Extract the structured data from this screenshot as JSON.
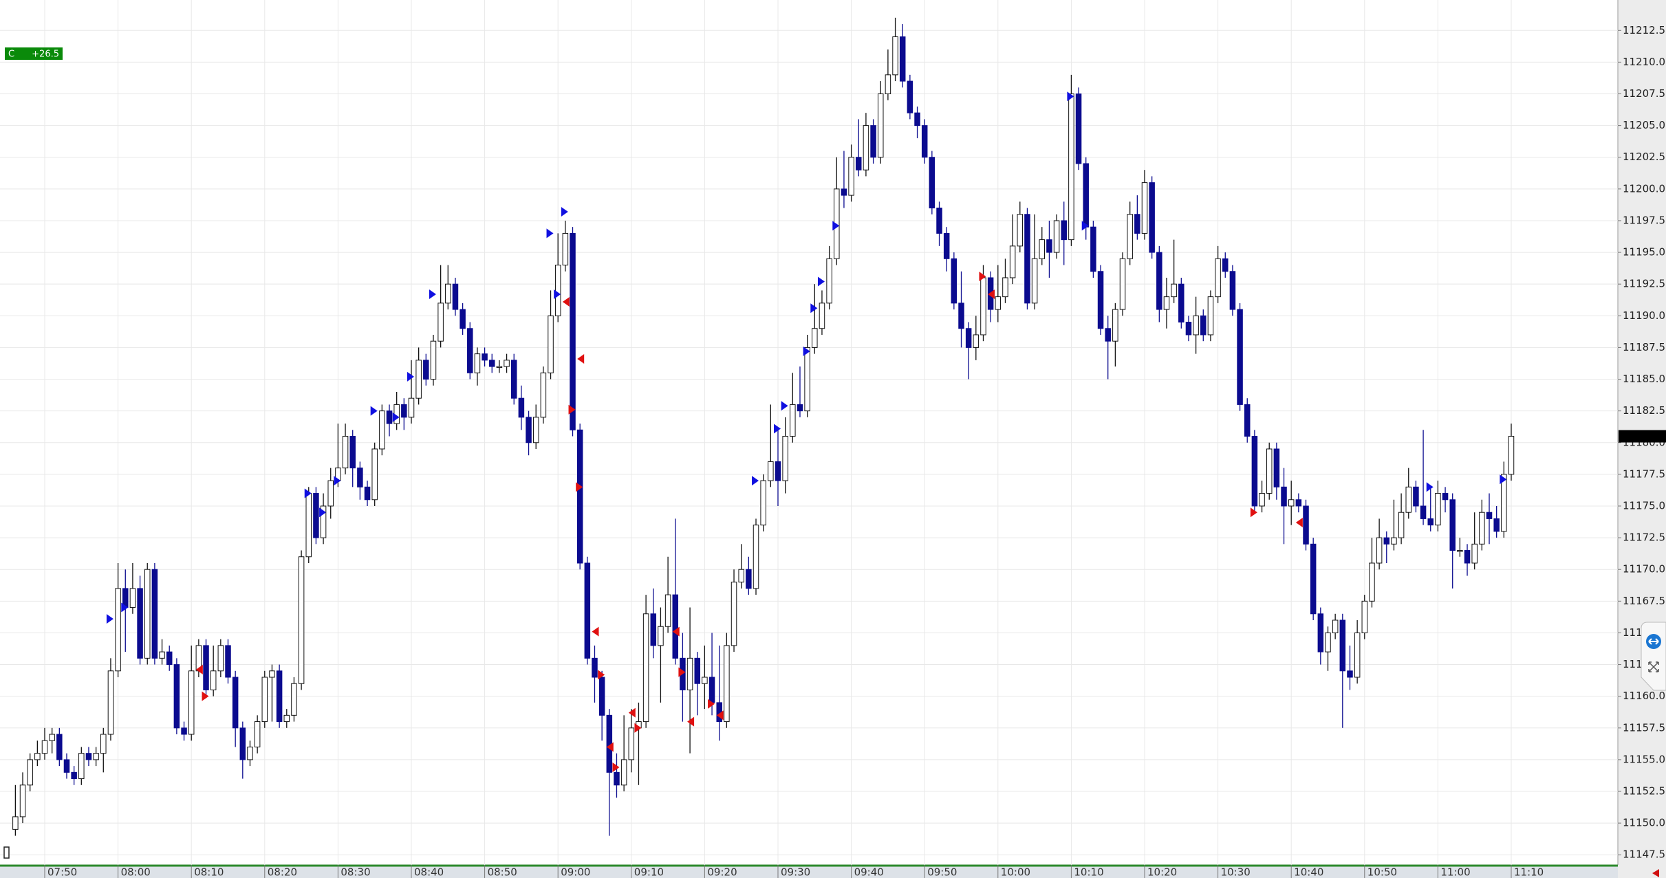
{
  "chart_data": {
    "type": "candlestick",
    "badge": {
      "label": "C",
      "text": "+26.5"
    },
    "up_color": "#ffffff",
    "down_color": "#0b0b8f",
    "outline_color": "#111111",
    "grid": true,
    "categories": [
      null,
      null,
      null,
      null,
      "07:50",
      null,
      null,
      null,
      null,
      null,
      null,
      null,
      null,
      null,
      "08:00",
      null,
      null,
      null,
      null,
      null,
      null,
      null,
      null,
      null,
      "08:10",
      null,
      null,
      null,
      null,
      null,
      null,
      null,
      null,
      null,
      "08:20",
      null,
      null,
      null,
      null,
      null,
      null,
      null,
      null,
      null,
      "08:30",
      null,
      null,
      null,
      null,
      null,
      null,
      null,
      null,
      null,
      "08:40",
      null,
      null,
      null,
      null,
      null,
      null,
      null,
      null,
      null,
      "08:50",
      null,
      null,
      null,
      null,
      null,
      null,
      null,
      null,
      null,
      "09:00",
      null,
      null,
      null,
      null,
      null,
      null,
      null,
      null,
      null,
      "09:10",
      null,
      null,
      null,
      null,
      null,
      null,
      null,
      null,
      null,
      "09:20",
      null,
      null,
      null,
      null,
      null,
      null,
      null,
      null,
      null,
      "09:30",
      null,
      null,
      null,
      null,
      null,
      null,
      null,
      null,
      null,
      "09:40",
      null,
      null,
      null,
      null,
      null,
      null,
      null,
      null,
      null,
      "09:50",
      null,
      null,
      null,
      null,
      null,
      null,
      null,
      null,
      null,
      "10:00",
      null,
      null,
      null,
      null,
      null,
      null,
      null,
      null,
      null,
      "10:10",
      null,
      null,
      null,
      null,
      null,
      null,
      null,
      null,
      null,
      "10:20",
      null,
      null,
      null,
      null,
      null,
      null,
      null,
      null,
      null,
      "10:30",
      null,
      null,
      null,
      null,
      null,
      null,
      null,
      null,
      null,
      "10:40",
      null,
      null,
      null,
      null,
      null,
      null,
      null,
      null,
      null,
      "10:50",
      null,
      null,
      null,
      null,
      null,
      null,
      null,
      null,
      null,
      "11:00",
      null,
      null,
      null,
      null,
      null,
      null,
      null,
      null,
      null,
      "11:10"
    ],
    "open": [
      11149.5,
      11150.5,
      11153,
      11155,
      11155.5,
      11156.5,
      11157,
      11155,
      11154,
      11153.5,
      11155.5,
      11155,
      11155.5,
      11157,
      11162,
      11168.5,
      11167,
      11168.5,
      11163,
      11170,
      11163,
      11163.5,
      11162.5,
      11157.5,
      11157,
      11162,
      11164,
      11160.5,
      11162,
      11164,
      11161.5,
      11157.5,
      11155,
      11156,
      11158,
      11161.5,
      11162,
      11158,
      11158.5,
      11161,
      11171,
      11176,
      11172.5,
      11175,
      11177,
      11178,
      11180.5,
      11178,
      11176.5,
      11175.5,
      11179.5,
      11182.5,
      11181.5,
      11183,
      11182,
      11183.5,
      11186.5,
      11185,
      11188,
      11191,
      11192.5,
      11190.5,
      11189,
      11185.5,
      11187,
      11186.5,
      11186,
      11186,
      11186.5,
      11183.5,
      11182,
      11180,
      11182,
      11185.5,
      11190,
      11194,
      11196.5,
      11181,
      11170.5,
      11163,
      11161.5,
      11158.5,
      11154,
      11153,
      11155,
      11157.5,
      11158,
      11166.5,
      11164,
      11165.5,
      11168,
      11163,
      11160.5,
      11163,
      11161,
      11161.5,
      11159.5,
      11158,
      11164,
      11169,
      11170,
      11168.5,
      11173.5,
      11177,
      11178.5,
      11177,
      11180.5,
      11183,
      11182.5,
      11187.5,
      11189,
      11191,
      11194.5,
      11200,
      11199.5,
      11202.5,
      11201.5,
      11205,
      11202.5,
      11207.5,
      11209,
      11212,
      11208.5,
      11206,
      11205,
      11202.5,
      11198.5,
      11196.5,
      11194.5,
      11191,
      11189,
      11187.5,
      11188.5,
      11193,
      11190.5,
      11191.5,
      11193,
      11195.5,
      11198,
      11191,
      11194.5,
      11196,
      11195,
      11197.5,
      11196,
      11207.5,
      11202,
      11197,
      11193.5,
      11189,
      11188,
      11190.5,
      11194.5,
      11198,
      11196.5,
      11200.5,
      11195,
      11190.5,
      11191.5,
      11192.5,
      11189.5,
      11188.5,
      11190,
      11188.5,
      11191.5,
      11194.5,
      11193.5,
      11190.5,
      11183,
      11180.5,
      11175,
      11176,
      11179.5,
      11176.5,
      11175,
      11175.5,
      11175,
      11172,
      11166.5,
      11163.5,
      11165,
      11166,
      11162,
      11161.5,
      11165,
      11167.5,
      11170.5,
      11172.5,
      11172,
      11172.5,
      11174.5,
      11176.5,
      11175,
      11174,
      11173.5,
      11176,
      11175.5,
      11171.5,
      11171.5,
      11170.5,
      11172,
      11174.5,
      11174,
      11173,
      11177.5
    ],
    "high": [
      11153,
      11154,
      11155.5,
      11156.5,
      11157.5,
      11157.5,
      11157.5,
      11155.5,
      11154.5,
      11156,
      11156,
      11156,
      11157.5,
      11163,
      11170.5,
      11170,
      11170.5,
      11169.5,
      11170.5,
      11170.5,
      11164.5,
      11164,
      11163,
      11158,
      11164,
      11164.5,
      11164.5,
      11164,
      11164.5,
      11164.5,
      11162,
      11158,
      11156.5,
      11158.5,
      11162,
      11162.5,
      11162.5,
      11159,
      11161.5,
      11171.5,
      11176.5,
      11176.5,
      11176,
      11178,
      11181.5,
      11181.5,
      11181,
      11178.5,
      11177,
      11180,
      11183,
      11183,
      11184,
      11183.5,
      11186.5,
      11187.5,
      11187,
      11188.5,
      11194,
      11194,
      11193,
      11191,
      11189.5,
      11187.5,
      11187.5,
      11187,
      11186.5,
      11187,
      11187,
      11184.5,
      11182.5,
      11183,
      11186,
      11192,
      11196.5,
      11197.5,
      11197,
      11181.5,
      11171,
      11164,
      11162,
      11159,
      11155.5,
      11158.5,
      11159,
      11159.5,
      11168,
      11168.5,
      11167,
      11171,
      11174,
      11165,
      11167,
      11163.5,
      11164,
      11165,
      11164,
      11165,
      11170,
      11172,
      11171,
      11174,
      11177.5,
      11183,
      11181,
      11182,
      11185.5,
      11186,
      11188.5,
      11192.5,
      11192,
      11195.5,
      11202.5,
      11203,
      11203.5,
      11205.5,
      11206,
      11205.5,
      11208.5,
      11211,
      11213.5,
      11213,
      11209,
      11206.5,
      11205.5,
      11203,
      11199,
      11197,
      11195,
      11193.5,
      11189.5,
      11190,
      11194,
      11193.5,
      11194,
      11194.5,
      11198,
      11199,
      11198.5,
      11198,
      11197,
      11197.5,
      11198,
      11199,
      11209,
      11208,
      11202.5,
      11197.5,
      11194,
      11190,
      11191,
      11195,
      11199,
      11199.5,
      11201.5,
      11201,
      11195.5,
      11193,
      11196,
      11193,
      11190,
      11191.5,
      11190.5,
      11192,
      11195.5,
      11195,
      11194,
      11191,
      11183.5,
      11181,
      11177,
      11180,
      11180,
      11178,
      11177,
      11176,
      11175.5,
      11172.5,
      11167,
      11165.5,
      11166.5,
      11166.5,
      11164,
      11166,
      11168,
      11172.5,
      11174,
      11173,
      11175.5,
      11176,
      11178,
      11177,
      11181,
      11176.5,
      11177,
      11176.5,
      11176,
      11172.5,
      11172,
      11174.5,
      11175.5,
      11176,
      11175,
      11178.5,
      11181.5
    ],
    "low": [
      11149,
      11150,
      11152.5,
      11154.5,
      11155,
      11155.5,
      11154.5,
      11153.5,
      11153,
      11153,
      11154.5,
      11154.5,
      11154,
      11156.5,
      11161.5,
      11163.5,
      11166.5,
      11162.5,
      11162.5,
      11162.5,
      11162.5,
      11162,
      11157,
      11156.5,
      11156.5,
      11161.5,
      11160,
      11160,
      11161.5,
      11161,
      11156,
      11153.5,
      11154.5,
      11155.5,
      11157.5,
      11158,
      11157.5,
      11157.5,
      11158,
      11160.5,
      11170.5,
      11172,
      11172,
      11174,
      11176.5,
      11177.5,
      11176.5,
      11175.5,
      11175,
      11175,
      11179,
      11180.5,
      11181,
      11181,
      11181.5,
      11183,
      11184.5,
      11184.5,
      11187.5,
      11190.5,
      11190,
      11188.5,
      11185,
      11184.5,
      11186,
      11185.5,
      11185.5,
      11185.5,
      11183,
      11181,
      11179,
      11179.5,
      11181.5,
      11185,
      11189.5,
      11193.5,
      11180.5,
      11170,
      11162.5,
      11159.5,
      11156.5,
      11149,
      11152,
      11152.5,
      11154,
      11153,
      11157.5,
      11163,
      11159.5,
      11165,
      11162.5,
      11158,
      11155.5,
      11158.5,
      11159,
      11158.5,
      11156.5,
      11157.5,
      11163.5,
      11168.5,
      11168,
      11168,
      11173,
      11176.5,
      11175,
      11176,
      11180,
      11182,
      11182,
      11187,
      11188.5,
      11190.5,
      11194,
      11198.5,
      11199,
      11201,
      11201,
      11202,
      11202,
      11207,
      11208.5,
      11208,
      11205.5,
      11204,
      11202,
      11198,
      11195.5,
      11193.5,
      11190.5,
      11187.5,
      11185,
      11186.5,
      11188,
      11189.5,
      11189.5,
      11191,
      11192.5,
      11195,
      11190.5,
      11190.5,
      11194,
      11193,
      11194.5,
      11194,
      11195.5,
      11201.5,
      11196,
      11193,
      11188.5,
      11185,
      11186,
      11190,
      11194,
      11196,
      11196,
      11194.5,
      11189.5,
      11189,
      11191,
      11189,
      11188,
      11187,
      11188,
      11188,
      11191,
      11193,
      11190,
      11182.5,
      11180,
      11174.5,
      11174.5,
      11175.5,
      11175.5,
      11172,
      11173.5,
      11174.5,
      11171.5,
      11166,
      11162.5,
      11162,
      11164.5,
      11157.5,
      11160.5,
      11161,
      11164.5,
      11167,
      11170,
      11170.5,
      11171.5,
      11172,
      11174,
      11174.5,
      11173.5,
      11173,
      11173,
      11174.5,
      11168.5,
      11171,
      11169.5,
      11170,
      11171.5,
      11172,
      11172.5,
      11172.5,
      11177
    ],
    "close": [
      11150.5,
      11153,
      11155,
      11155.5,
      11156.5,
      11157,
      11155,
      11154,
      11153.5,
      11155.5,
      11155,
      11155.5,
      11157,
      11162,
      11168.5,
      11167,
      11168.5,
      11163,
      11170,
      11163,
      11163.5,
      11162.5,
      11157.5,
      11157,
      11162,
      11164,
      11160.5,
      11162,
      11164,
      11161.5,
      11157.5,
      11155,
      11156,
      11158,
      11161.5,
      11162,
      11158,
      11158.5,
      11161,
      11171,
      11176,
      11172.5,
      11175,
      11177,
      11178,
      11180.5,
      11178,
      11176.5,
      11175.5,
      11179.5,
      11182.5,
      11181.5,
      11183,
      11182,
      11183.5,
      11186.5,
      11185,
      11188,
      11191,
      11192.5,
      11190.5,
      11189,
      11185.5,
      11187,
      11186.5,
      11186,
      11186,
      11186.5,
      11183.5,
      11182,
      11180,
      11182,
      11185.5,
      11190,
      11194,
      11196.5,
      11181,
      11170.5,
      11163,
      11161.5,
      11158.5,
      11154,
      11153,
      11155,
      11157.5,
      11158,
      11166.5,
      11164,
      11165.5,
      11168,
      11163,
      11160.5,
      11163,
      11161,
      11161.5,
      11159.5,
      11158,
      11164,
      11169,
      11170,
      11168.5,
      11173.5,
      11177,
      11178.5,
      11177,
      11180.5,
      11183,
      11182.5,
      11187.5,
      11189,
      11191,
      11194.5,
      11200,
      11199.5,
      11202.5,
      11201.5,
      11205,
      11202.5,
      11207.5,
      11209,
      11212,
      11208.5,
      11206,
      11205,
      11202.5,
      11198.5,
      11196.5,
      11194.5,
      11191,
      11189,
      11187.5,
      11188.5,
      11193,
      11190.5,
      11191.5,
      11193,
      11195.5,
      11198,
      11191,
      11194.5,
      11196,
      11195,
      11197.5,
      11196,
      11207.5,
      11202,
      11197,
      11193.5,
      11189,
      11188,
      11190.5,
      11194.5,
      11198,
      11196.5,
      11200.5,
      11195,
      11190.5,
      11191.5,
      11192.5,
      11189.5,
      11188.5,
      11190,
      11188.5,
      11191.5,
      11194.5,
      11193.5,
      11190.5,
      11183,
      11180.5,
      11175,
      11176,
      11179.5,
      11176.5,
      11175,
      11175.5,
      11175,
      11172,
      11166.5,
      11163.5,
      11165,
      11166,
      11162,
      11161.5,
      11165,
      11167.5,
      11170.5,
      11172.5,
      11172,
      11172.5,
      11174.5,
      11176.5,
      11175,
      11174,
      11173.5,
      11176,
      11175.5,
      11171.5,
      11171.5,
      11170.5,
      11172,
      11174.5,
      11174,
      11173,
      11177.5,
      11180.5
    ],
    "markers": [
      {
        "index": 13,
        "price": 11166.1,
        "color": "#1010e0"
      },
      {
        "index": 15,
        "price": 11167,
        "color": "#1010e0"
      },
      {
        "index": 40,
        "price": 11176,
        "color": "#1010e0"
      },
      {
        "index": 42,
        "price": 11174.5,
        "color": "#1010e0"
      },
      {
        "index": 44,
        "price": 11177,
        "color": "#1010e0"
      },
      {
        "index": 49,
        "price": 11182.5,
        "color": "#1010e0"
      },
      {
        "index": 52,
        "price": 11182,
        "color": "#1010e0"
      },
      {
        "index": 54,
        "price": 11185.2,
        "color": "#1010e0"
      },
      {
        "index": 57,
        "price": 11191.7,
        "color": "#1010e0"
      },
      {
        "index": 73,
        "price": 11196.5,
        "color": "#1010e0"
      },
      {
        "index": 74,
        "price": 11191.7,
        "color": "#1010e0"
      },
      {
        "index": 75,
        "price": 11198.2,
        "color": "#1010e0"
      },
      {
        "index": 101,
        "price": 11177,
        "color": "#1010e0"
      },
      {
        "index": 104,
        "price": 11181.1,
        "color": "#1010e0"
      },
      {
        "index": 105,
        "price": 11182.9,
        "color": "#1010e0"
      },
      {
        "index": 108,
        "price": 11187.2,
        "color": "#1010e0"
      },
      {
        "index": 109,
        "price": 11190.6,
        "color": "#1010e0"
      },
      {
        "index": 110,
        "price": 11192.7,
        "color": "#1010e0"
      },
      {
        "index": 112,
        "price": 11197.1,
        "color": "#1010e0"
      },
      {
        "index": 144,
        "price": 11207.3,
        "color": "#1010e0"
      },
      {
        "index": 146,
        "price": 11197.1,
        "color": "#1010e0"
      },
      {
        "index": 193,
        "price": 11176.5,
        "color": "#1010e0"
      },
      {
        "index": 203,
        "price": 11177.1,
        "color": "#1010e0"
      },
      {
        "index": 25,
        "price": 11162.1,
        "color": "#e01010"
      },
      {
        "index": 26,
        "price": 11160,
        "color": "#e01010"
      },
      {
        "index": 75,
        "price": 11191.1,
        "color": "#e01010"
      },
      {
        "index": 76,
        "price": 11182.6,
        "color": "#e01010"
      },
      {
        "index": 77,
        "price": 11186.6,
        "color": "#e01010"
      },
      {
        "index": 77,
        "price": 11176.5,
        "color": "#e01010"
      },
      {
        "index": 79,
        "price": 11165.1,
        "color": "#e01010"
      },
      {
        "index": 80,
        "price": 11161.7,
        "color": "#e01010"
      },
      {
        "index": 81,
        "price": 11156,
        "color": "#e01010"
      },
      {
        "index": 82,
        "price": 11154.4,
        "color": "#e01010"
      },
      {
        "index": 84,
        "price": 11158.7,
        "color": "#e01010"
      },
      {
        "index": 85,
        "price": 11157.5,
        "color": "#e01010"
      },
      {
        "index": 90,
        "price": 11165.1,
        "color": "#e01010"
      },
      {
        "index": 91,
        "price": 11161.9,
        "color": "#e01010"
      },
      {
        "index": 92,
        "price": 11158,
        "color": "#e01010"
      },
      {
        "index": 95,
        "price": 11159.4,
        "color": "#e01010"
      },
      {
        "index": 96,
        "price": 11158.5,
        "color": "#e01010"
      },
      {
        "index": 132,
        "price": 11193.1,
        "color": "#e01010"
      },
      {
        "index": 133,
        "price": 11191.7,
        "color": "#e01010"
      },
      {
        "index": 169,
        "price": 11174.5,
        "color": "#e01010"
      },
      {
        "index": 175,
        "price": 11173.7,
        "color": "#e01010"
      }
    ],
    "ylim": [
      11146.7,
      11214.9
    ],
    "yticks": [
      11147.5,
      {
        "value": 11150,
        "label": "11150.0"
      },
      11152.5,
      {
        "value": 11155,
        "label": "11155.0"
      },
      11157.5,
      {
        "value": 11160,
        "label": "11160.0"
      },
      11162.5,
      {
        "value": 11165,
        "label": "11165.0"
      },
      11167.5,
      {
        "value": 11170,
        "label": "11170.0"
      },
      11172.5,
      {
        "value": 11175,
        "label": "11175.0"
      },
      11177.5,
      {
        "value": 11180,
        "label": "11180.0"
      },
      11182.5,
      {
        "value": 11185,
        "label": "11185.0"
      },
      11187.5,
      {
        "value": 11190,
        "label": "11190.0"
      },
      11192.5,
      {
        "value": 11195,
        "label": "11195.0"
      },
      11197.5,
      {
        "value": 11200,
        "label": "11200.0"
      },
      11202.5,
      {
        "value": 11205,
        "label": "11205.0"
      },
      11207.5,
      {
        "value": 11210,
        "label": "11210.0"
      },
      11212.5
    ]
  }
}
